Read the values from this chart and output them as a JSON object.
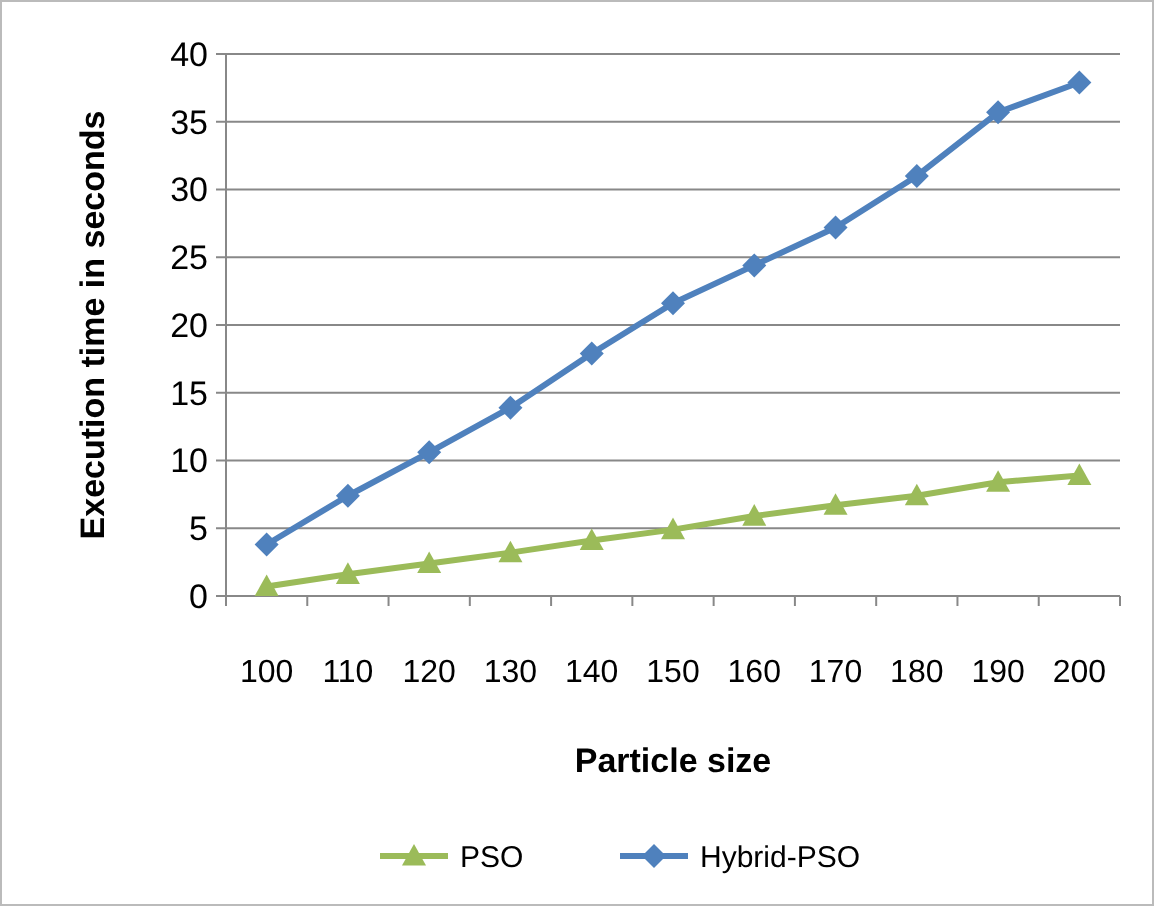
{
  "chart_data": {
    "type": "line",
    "xlabel": "Particle size",
    "ylabel": "Execution time in seconds",
    "categories": [
      "100",
      "110",
      "120",
      "130",
      "140",
      "150",
      "160",
      "170",
      "180",
      "190",
      "200"
    ],
    "series": [
      {
        "name": "PSO",
        "color": "#9bbb59",
        "marker": "triangle",
        "values": [
          0.7,
          1.6,
          2.4,
          3.2,
          4.1,
          4.9,
          5.9,
          6.7,
          7.4,
          8.4,
          8.9
        ]
      },
      {
        "name": "Hybrid-PSO",
        "color": "#4f81bd",
        "marker": "diamond",
        "values": [
          3.8,
          7.4,
          10.6,
          13.9,
          17.9,
          21.6,
          24.4,
          27.2,
          31.0,
          35.7,
          37.9
        ]
      }
    ],
    "ylim": [
      0,
      40
    ],
    "yticks": [
      0,
      5,
      10,
      15,
      20,
      25,
      30,
      35,
      40
    ],
    "grid": "y",
    "legend": "bottom"
  }
}
